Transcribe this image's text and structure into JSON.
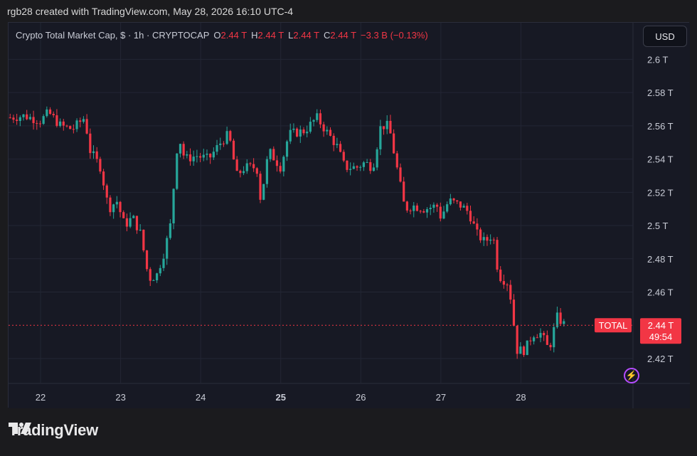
{
  "caption": "rgb28 created with TradingView.com, May 28, 2026 16:10 UTC-4",
  "legend": {
    "symbol": "Crypto Total Market Cap, $ · 1h · CRYPTOCAP",
    "o_label": "O",
    "o_value": "2.44 T",
    "h_label": "H",
    "h_value": "2.44 T",
    "l_label": "L",
    "l_value": "2.44 T",
    "c_label": "C",
    "c_value": "2.44 T",
    "change": "−3.3 B (−0.13%)"
  },
  "currency_button": "USD",
  "symbol_tag": "TOTAL",
  "price_tag": {
    "price": "2.44 T",
    "countdown": "49:54"
  },
  "brand": {
    "name": "TradingView",
    "logo_icon": "tradingview-logo-icon"
  },
  "colors": {
    "up": "#26a69a",
    "down": "#f23645",
    "bg": "#171924",
    "grid": "#232634"
  },
  "chart_data": {
    "type": "candlestick",
    "interval": "1h",
    "y_ticks": [
      "2.6 T",
      "2.58 T",
      "2.56 T",
      "2.54 T",
      "2.52 T",
      "2.5 T",
      "2.48 T",
      "2.46 T",
      "2.42 T"
    ],
    "y_tick_values": [
      2.6,
      2.58,
      2.56,
      2.54,
      2.52,
      2.5,
      2.48,
      2.46,
      2.42
    ],
    "ylim": [
      2.405,
      2.622
    ],
    "x_ticks": [
      "22",
      "23",
      "24",
      "25",
      "26",
      "27",
      "28"
    ],
    "x_tick_days": [
      22,
      23,
      24,
      25,
      26,
      27,
      28
    ],
    "x_tick_bold": [
      false,
      false,
      false,
      true,
      false,
      false,
      false
    ],
    "x_range_days": [
      21.6,
      29.4
    ],
    "current_price": 2.44,
    "close_path": [
      [
        21.62,
        2.565
      ],
      [
        21.8,
        2.566
      ],
      [
        22.0,
        2.563
      ],
      [
        22.1,
        2.568
      ],
      [
        22.25,
        2.56
      ],
      [
        22.4,
        2.558
      ],
      [
        22.55,
        2.565
      ],
      [
        22.62,
        2.545
      ],
      [
        22.75,
        2.535
      ],
      [
        22.85,
        2.51
      ],
      [
        22.95,
        2.515
      ],
      [
        23.05,
        2.5
      ],
      [
        23.15,
        2.505
      ],
      [
        23.25,
        2.495
      ],
      [
        23.35,
        2.468
      ],
      [
        23.45,
        2.47
      ],
      [
        23.55,
        2.485
      ],
      [
        23.62,
        2.5
      ],
      [
        23.72,
        2.555
      ],
      [
        23.8,
        2.54
      ],
      [
        23.95,
        2.542
      ],
      [
        24.1,
        2.54
      ],
      [
        24.25,
        2.55
      ],
      [
        24.35,
        2.555
      ],
      [
        24.45,
        2.53
      ],
      [
        24.55,
        2.535
      ],
      [
        24.7,
        2.535
      ],
      [
        24.75,
        2.515
      ],
      [
        24.85,
        2.545
      ],
      [
        25.0,
        2.535
      ],
      [
        25.1,
        2.555
      ],
      [
        25.3,
        2.557
      ],
      [
        25.45,
        2.565
      ],
      [
        25.55,
        2.558
      ],
      [
        25.7,
        2.548
      ],
      [
        25.8,
        2.535
      ],
      [
        25.95,
        2.535
      ],
      [
        26.05,
        2.538
      ],
      [
        26.15,
        2.535
      ],
      [
        26.25,
        2.56
      ],
      [
        26.35,
        2.56
      ],
      [
        26.45,
        2.535
      ],
      [
        26.55,
        2.51
      ],
      [
        26.65,
        2.512
      ],
      [
        26.8,
        2.51
      ],
      [
        26.95,
        2.512
      ],
      [
        27.0,
        2.505
      ],
      [
        27.1,
        2.515
      ],
      [
        27.25,
        2.512
      ],
      [
        27.35,
        2.508
      ],
      [
        27.45,
        2.495
      ],
      [
        27.55,
        2.49
      ],
      [
        27.65,
        2.495
      ],
      [
        27.72,
        2.47
      ],
      [
        27.85,
        2.465
      ],
      [
        27.95,
        2.425
      ],
      [
        28.05,
        2.425
      ],
      [
        28.15,
        2.435
      ],
      [
        28.25,
        2.435
      ],
      [
        28.35,
        2.425
      ],
      [
        28.45,
        2.445
      ],
      [
        28.55,
        2.44
      ]
    ]
  }
}
